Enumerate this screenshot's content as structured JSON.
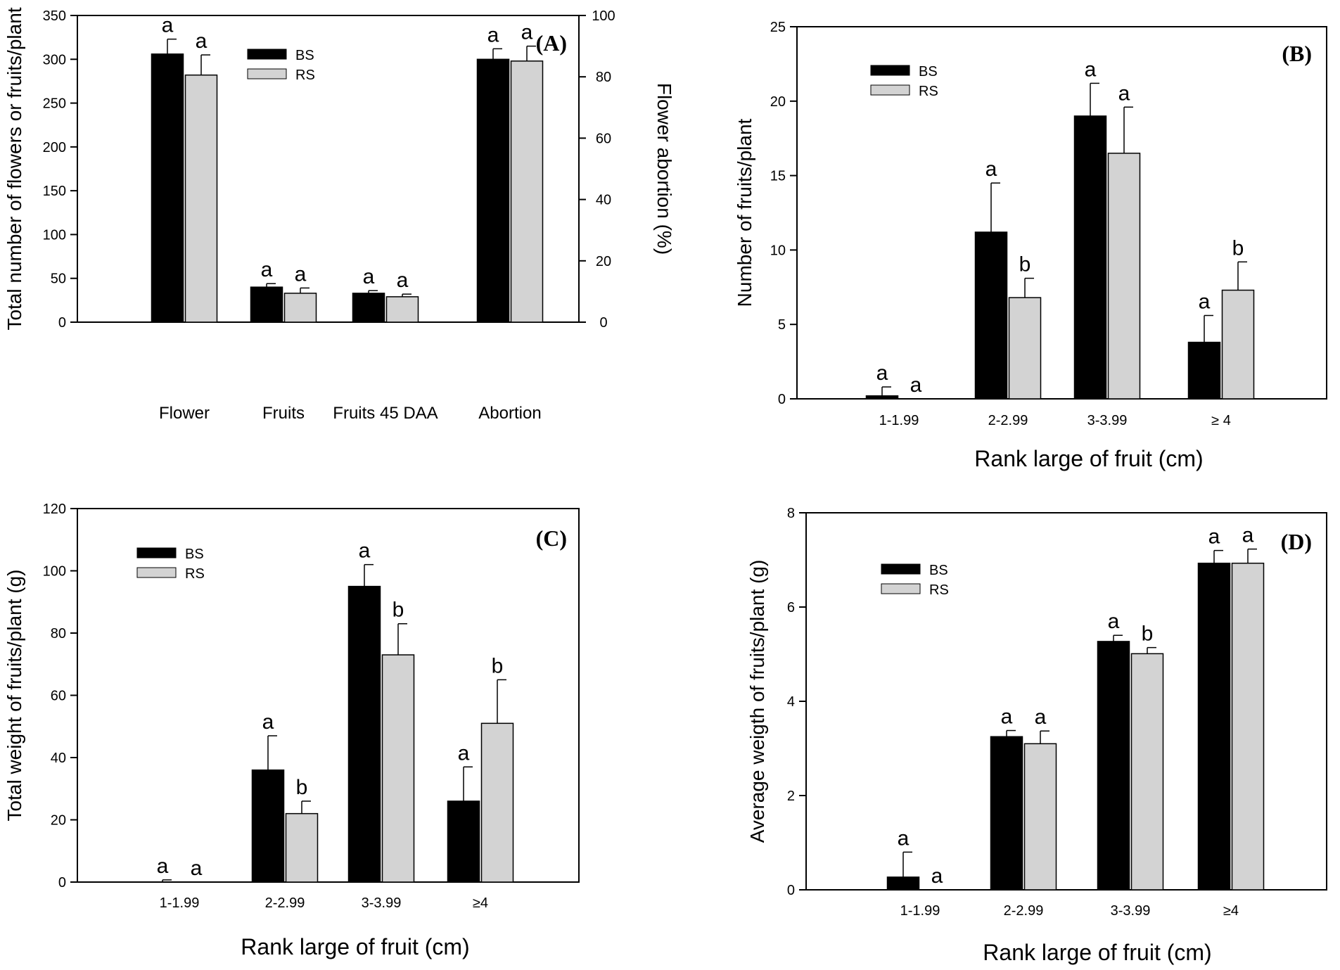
{
  "colors": {
    "bs": "#000000",
    "rs": "#d3d3d3",
    "axis": "#000000",
    "background": "#ffffff"
  },
  "chart_data": [
    {
      "panel": "(A)",
      "type": "bar",
      "categories": [
        "Flower",
        "Fruits",
        "Fruits 45 DAA",
        "Abortion"
      ],
      "ylabel": "Total number of flowers or fruits/plant",
      "ylim": [
        0,
        350
      ],
      "yticks": [
        0,
        50,
        100,
        150,
        200,
        250,
        300,
        350
      ],
      "y2label": "Flower abortion (%)",
      "y2lim": [
        0,
        100
      ],
      "y2ticks": [
        0,
        20,
        40,
        60,
        80,
        100
      ],
      "xlabel": "",
      "series": [
        {
          "name": "BS",
          "values": [
            306,
            40,
            33,
            300
          ],
          "errors": [
            17,
            4,
            3,
            12
          ],
          "letters": [
            "a",
            "a",
            "a",
            "a"
          ]
        },
        {
          "name": "RS",
          "values": [
            282,
            33,
            29,
            298
          ],
          "errors": [
            23,
            6,
            3,
            17
          ],
          "letters": [
            "a",
            "a",
            "a",
            "a"
          ]
        }
      ]
    },
    {
      "panel": "(B)",
      "type": "bar",
      "categories": [
        "1-1.99",
        "2-2.99",
        "3-3.99",
        "≥ 4"
      ],
      "ylabel": "Number of fruits/plant",
      "xlabel": "Rank large of fruit (cm)",
      "ylim": [
        0,
        25
      ],
      "yticks": [
        0,
        5,
        10,
        15,
        20,
        25
      ],
      "series": [
        {
          "name": "BS",
          "values": [
            0.2,
            11.2,
            19.0,
            3.8
          ],
          "errors": [
            0.6,
            3.3,
            2.2,
            1.8
          ],
          "letters": [
            "a",
            "a",
            "a",
            "a"
          ]
        },
        {
          "name": "RS",
          "values": [
            0,
            6.8,
            16.5,
            7.3
          ],
          "errors": [
            0,
            1.3,
            3.1,
            1.9
          ],
          "letters": [
            "a",
            "b",
            "a",
            "b"
          ]
        }
      ]
    },
    {
      "panel": "(C)",
      "type": "bar",
      "categories": [
        "1-1.99",
        "2-2.99",
        "3-3.99",
        "≥4"
      ],
      "ylabel": "Total weight of fruits/plant (g)",
      "xlabel": "Rank large of fruit (cm)",
      "ylim": [
        0,
        120
      ],
      "yticks": [
        0,
        20,
        40,
        60,
        80,
        100,
        120
      ],
      "series": [
        {
          "name": "BS",
          "values": [
            0,
            36,
            95,
            26
          ],
          "errors": [
            0.7,
            11,
            7,
            11
          ],
          "letters": [
            "a",
            "a",
            "a",
            "a"
          ]
        },
        {
          "name": "RS",
          "values": [
            0,
            22,
            73,
            51
          ],
          "errors": [
            0,
            4,
            10,
            14
          ],
          "letters": [
            "a",
            "b",
            "b",
            "b"
          ]
        }
      ]
    },
    {
      "panel": "(D)",
      "type": "bar",
      "categories": [
        "1-1.99",
        "2-2.99",
        "3-3.99",
        "≥4"
      ],
      "ylabel": "Average weigth of fruits/plant (g)",
      "xlabel": "Rank large of fruit (cm)",
      "ylim": [
        0,
        8
      ],
      "yticks": [
        0,
        2,
        4,
        6,
        8
      ],
      "series": [
        {
          "name": "BS",
          "values": [
            0.27,
            3.25,
            5.27,
            6.93
          ],
          "errors": [
            0.53,
            0.13,
            0.13,
            0.27
          ],
          "letters": [
            "a",
            "a",
            "a",
            "a"
          ]
        },
        {
          "name": "RS",
          "values": [
            0,
            3.1,
            5.01,
            6.93
          ],
          "errors": [
            0,
            0.27,
            0.13,
            0.3
          ],
          "letters": [
            "a",
            "a",
            "b",
            "a"
          ]
        }
      ]
    }
  ]
}
